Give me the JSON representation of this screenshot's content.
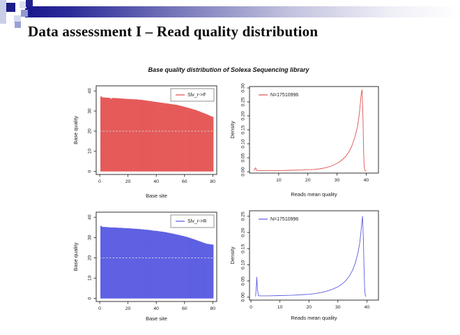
{
  "slide": {
    "title": "Data assessment I – Read quality distribution",
    "theme": {
      "navy": "#1c1c87",
      "navy_dark": "#22228e",
      "periwinkle": "#8f99d0",
      "periwinkle2": "#99a2d4",
      "pale_blue": "#c9cfe8",
      "pale_blue_2": "#dadff1",
      "pale_blue_3": "#d5daee",
      "gradient_start": "#18188e"
    }
  },
  "figure": {
    "title": "Base quality distribution of Solexa Sequencing library"
  },
  "chart_data": [
    {
      "id": "forward-base-quality",
      "type": "bar",
      "xlabel": "Base site",
      "ylabel": "Base quality",
      "legend": {
        "label": "Slv_r->F",
        "position": "top-right",
        "boxed": true
      },
      "color": "#e24e4e",
      "color_light": "#f49b97",
      "xlim": [
        -2.5,
        82.8
      ],
      "ylim": [
        -1.5,
        42.5
      ],
      "xticks": [
        0,
        20,
        40,
        60,
        80
      ],
      "yticks": [
        0,
        10,
        20,
        30,
        40
      ],
      "ytick_labels": [
        "0",
        "10",
        "20",
        "30",
        "40"
      ],
      "dashed_hline": 20,
      "x_start": 1,
      "values": [
        37.2,
        36.8,
        36.7,
        36.7,
        36.6,
        36.6,
        36.5,
        36.1,
        36.4,
        36.5,
        36.4,
        36.4,
        36.3,
        36.3,
        36.2,
        36.2,
        36.1,
        36.1,
        36.0,
        36.0,
        35.9,
        35.9,
        35.9,
        35.8,
        35.8,
        35.8,
        35.7,
        35.6,
        35.6,
        35.5,
        35.4,
        35.3,
        35.2,
        35.1,
        35.0,
        34.9,
        34.8,
        34.7,
        34.6,
        34.5,
        34.4,
        34.3,
        34.2,
        34.1,
        34.0,
        33.9,
        33.8,
        33.7,
        33.6,
        33.5,
        33.4,
        33.3,
        33.2,
        33.1,
        33.0,
        32.8,
        32.6,
        32.5,
        32.3,
        32.1,
        31.9,
        31.7,
        31.5,
        31.3,
        31.1,
        30.9,
        30.7,
        30.5,
        30.2,
        30.0,
        29.7,
        29.4,
        29.1,
        28.9,
        28.6,
        28.3,
        28.0,
        27.7,
        27.4,
        27.1
      ]
    },
    {
      "id": "forward-reads-mean-quality-density",
      "type": "line",
      "xlabel": "Reads mean quality",
      "ylabel": "Density",
      "legend": {
        "label": "N=17510996",
        "position": "top-left",
        "boxed": false
      },
      "color": "#e05252",
      "xlim": [
        0,
        44.2
      ],
      "ylim": [
        -0.005,
        0.305
      ],
      "xticks": [
        10,
        20,
        30,
        40
      ],
      "yticks": [
        0,
        0.05,
        0.1,
        0.15,
        0.2,
        0.25,
        0.3
      ],
      "ytick_labels": [
        "0.00",
        "0.05",
        "0.10",
        "0.15",
        "0.20",
        "0.25",
        "0.30"
      ],
      "points": [
        [
          1.6,
          0.003
        ],
        [
          1.9,
          0.012
        ],
        [
          2.1,
          0.014
        ],
        [
          2.4,
          0.005
        ],
        [
          3,
          0.004
        ],
        [
          6,
          0.004
        ],
        [
          10,
          0.004
        ],
        [
          14,
          0.005
        ],
        [
          18,
          0.006
        ],
        [
          20,
          0.007
        ],
        [
          22,
          0.008
        ],
        [
          24,
          0.01
        ],
        [
          26,
          0.014
        ],
        [
          28,
          0.02
        ],
        [
          30,
          0.03
        ],
        [
          31,
          0.036
        ],
        [
          32,
          0.045
        ],
        [
          33,
          0.055
        ],
        [
          34,
          0.07
        ],
        [
          35,
          0.09
        ],
        [
          36,
          0.12
        ],
        [
          37,
          0.16
        ],
        [
          37.5,
          0.195
        ],
        [
          38,
          0.245
        ],
        [
          38.3,
          0.28
        ],
        [
          38.6,
          0.293
        ],
        [
          38.9,
          0.19
        ],
        [
          39.1,
          0.08
        ],
        [
          39.3,
          0.02
        ],
        [
          39.5,
          0.005
        ],
        [
          40,
          0.002
        ]
      ]
    },
    {
      "id": "reverse-base-quality",
      "type": "bar",
      "xlabel": "Base site",
      "ylabel": "Base quality",
      "legend": {
        "label": "Slv_r->R",
        "position": "top-right",
        "boxed": true
      },
      "color": "#5356e0",
      "color_light": "#9a99ee",
      "xlim": [
        -2.5,
        82.8
      ],
      "ylim": [
        -1.5,
        42.5
      ],
      "xticks": [
        0,
        20,
        40,
        60,
        80
      ],
      "yticks": [
        0,
        10,
        20,
        30,
        40
      ],
      "ytick_labels": [
        "0",
        "10",
        "20",
        "30",
        "40"
      ],
      "dashed_hline": 20,
      "x_start": 1,
      "values": [
        35.7,
        35.3,
        35.2,
        35.2,
        35.1,
        35.1,
        35.0,
        35.0,
        34.9,
        35.0,
        34.9,
        34.9,
        34.8,
        34.8,
        34.8,
        34.7,
        34.7,
        34.6,
        34.6,
        34.6,
        34.5,
        34.5,
        34.4,
        34.4,
        34.3,
        34.3,
        34.2,
        34.2,
        34.1,
        34.0,
        34.0,
        33.9,
        33.8,
        33.8,
        33.7,
        33.6,
        33.5,
        33.4,
        33.3,
        33.3,
        33.2,
        33.1,
        33.0,
        32.9,
        32.8,
        32.7,
        32.6,
        32.4,
        32.3,
        32.2,
        32.0,
        31.9,
        31.7,
        31.6,
        31.4,
        31.3,
        31.1,
        30.9,
        30.8,
        30.6,
        30.4,
        30.2,
        30.0,
        29.8,
        29.5,
        29.3,
        29.1,
        28.8,
        28.6,
        28.3,
        28.1,
        27.8,
        27.6,
        27.3,
        27.1,
        26.9,
        26.8,
        26.7,
        26.6,
        26.5
      ]
    },
    {
      "id": "reverse-reads-mean-quality-density",
      "type": "line",
      "xlabel": "Reads mean quality",
      "ylabel": "Density",
      "legend": {
        "label": "N=17510996",
        "position": "top-left",
        "boxed": false
      },
      "color": "#5c5ce0",
      "xlim": [
        -0.5,
        44.0
      ],
      "ylim": [
        -0.009,
        0.267
      ],
      "xticks": [
        0,
        10,
        20,
        30,
        40
      ],
      "yticks": [
        0,
        0.05,
        0.1,
        0.15,
        0.2,
        0.25
      ],
      "ytick_labels": [
        "0.00",
        "0.05",
        "0.10",
        "0.15",
        "0.20",
        "0.25"
      ],
      "points": [
        [
          1.6,
          0.002
        ],
        [
          1.9,
          0.04
        ],
        [
          2.0,
          0.062
        ],
        [
          2.3,
          0.02
        ],
        [
          2.6,
          0.005
        ],
        [
          3,
          0.004
        ],
        [
          6,
          0.004
        ],
        [
          10,
          0.005
        ],
        [
          14,
          0.006
        ],
        [
          18,
          0.008
        ],
        [
          20,
          0.009
        ],
        [
          22,
          0.011
        ],
        [
          24,
          0.014
        ],
        [
          26,
          0.018
        ],
        [
          28,
          0.024
        ],
        [
          30,
          0.032
        ],
        [
          31,
          0.038
        ],
        [
          32,
          0.045
        ],
        [
          33,
          0.054
        ],
        [
          34,
          0.066
        ],
        [
          35,
          0.082
        ],
        [
          36,
          0.105
        ],
        [
          37,
          0.14
        ],
        [
          37.5,
          0.165
        ],
        [
          38,
          0.205
        ],
        [
          38.3,
          0.235
        ],
        [
          38.5,
          0.25
        ],
        [
          38.8,
          0.18
        ],
        [
          39,
          0.1
        ],
        [
          39.2,
          0.035
        ],
        [
          39.4,
          0.008
        ],
        [
          39.7,
          0.002
        ]
      ]
    }
  ]
}
